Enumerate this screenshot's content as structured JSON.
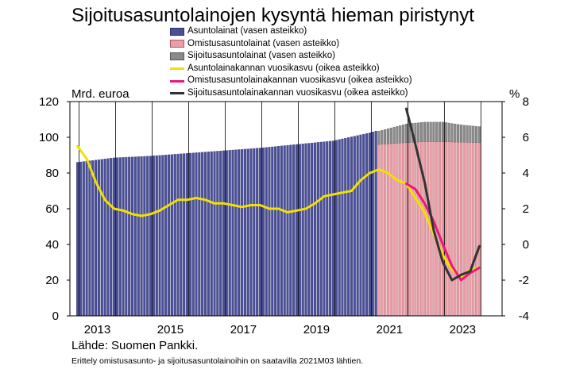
{
  "title": "Sijoitusasuntolainojen kysyntä hieman piristynyt",
  "legend": [
    {
      "label": "Asuntolainat (vasen asteikko)",
      "kind": "bar",
      "color": "#4a4f96",
      "border": "#2f3270"
    },
    {
      "label": "Omistusasuntolainat (vasen asteikko)",
      "kind": "bar",
      "color": "#e8a0a8",
      "border": "#b05560"
    },
    {
      "label": "Sijoitusasuntolainat (vasen asteikko)",
      "kind": "bar",
      "color": "#8a8a8a",
      "border": "#555555"
    },
    {
      "label": "Asuntolainakannan vuosikasvu (oikea asteikko)",
      "kind": "line",
      "color": "#f2e000"
    },
    {
      "label": "Omistusasuntolainakannan vuosikasvu (oikea asteikko)",
      "kind": "line",
      "color": "#e8197a"
    },
    {
      "label": "Sijoitusasuntolainakannan vuosikasvu (oikea asteikko)",
      "kind": "line",
      "color": "#333333"
    }
  ],
  "left_unit": "Mrd. euroa",
  "right_unit": "%",
  "source": "Lähde: Suomen Pankki.",
  "note": "Erittely omistusasunto- ja sijoitusasuntolainoihin on saatavilla 2021M03 lähtien.",
  "chart_data": {
    "type": "bar",
    "title": "Sijoitusasuntolainojen kysyntä hieman piristynyt",
    "x_ticks": [
      "2013",
      "2015",
      "2017",
      "2019",
      "2021",
      "2023"
    ],
    "y_left": {
      "label": "Mrd. euroa",
      "range": [
        0,
        120
      ],
      "ticks": [
        "0",
        "20",
        "40",
        "60",
        "80",
        "100",
        "120"
      ]
    },
    "y_right": {
      "label": "%",
      "range": [
        -4,
        8
      ],
      "ticks": [
        "-4",
        "-2",
        "0",
        "2",
        "4",
        "6",
        "8"
      ]
    },
    "grid": "vertical lines at year boundaries",
    "series": [
      {
        "name": "Asuntolainat (vasen asteikko)",
        "type": "bar",
        "axis": "left",
        "x": [
          "2012-12",
          "2013-12",
          "2014-12",
          "2015-12",
          "2016-12",
          "2017-12",
          "2018-12",
          "2019-12",
          "2020-12",
          "2021-02"
        ],
        "values": [
          86.0,
          88.5,
          89.5,
          91.0,
          92.5,
          94.0,
          96.0,
          98.0,
          102.5,
          103.5
        ]
      },
      {
        "name": "Omistusasuntolainat (vasen asteikko)",
        "type": "bar",
        "axis": "left",
        "x": [
          "2021-03",
          "2021-12",
          "2022-06",
          "2022-12",
          "2023-06",
          "2023-12"
        ],
        "values": [
          96.0,
          97.0,
          97.5,
          97.5,
          97.2,
          97.0
        ]
      },
      {
        "name": "Sijoitusasuntolainat (vasen asteikko)",
        "type": "bar",
        "axis": "left",
        "x": [
          "2021-03",
          "2021-12",
          "2022-06",
          "2022-12",
          "2023-06",
          "2023-12"
        ],
        "values": [
          7.5,
          10.5,
          11.0,
          11.0,
          9.8,
          9.0
        ]
      },
      {
        "name": "Asuntolainakannan vuosikasvu (oikea asteikko)",
        "type": "line",
        "axis": "right",
        "x": [
          "2012-12",
          "2013-03",
          "2013-06",
          "2013-09",
          "2013-12",
          "2014-03",
          "2014-06",
          "2014-09",
          "2014-12",
          "2015-03",
          "2015-06",
          "2015-09",
          "2015-12",
          "2016-03",
          "2016-06",
          "2016-09",
          "2016-12",
          "2017-03",
          "2017-06",
          "2017-09",
          "2017-12",
          "2018-03",
          "2018-06",
          "2018-09",
          "2018-12",
          "2019-03",
          "2019-06",
          "2019-09",
          "2019-12",
          "2020-03",
          "2020-06",
          "2020-09",
          "2020-12",
          "2021-03",
          "2021-06",
          "2021-09",
          "2021-12",
          "2022-03",
          "2022-06",
          "2022-09",
          "2022-12",
          "2023-03",
          "2023-06",
          "2023-09",
          "2023-12"
        ],
        "values": [
          5.5,
          4.8,
          3.5,
          2.5,
          2.0,
          1.9,
          1.7,
          1.6,
          1.7,
          1.9,
          2.2,
          2.5,
          2.5,
          2.6,
          2.5,
          2.3,
          2.3,
          2.2,
          2.1,
          2.2,
          2.2,
          2.0,
          2.0,
          1.8,
          1.9,
          2.0,
          2.3,
          2.7,
          2.8,
          2.9,
          3.0,
          3.6,
          4.0,
          4.2,
          4.0,
          3.6,
          3.4,
          2.6,
          1.8,
          0.6,
          -0.6,
          -1.4,
          -1.8,
          -1.4,
          -1.3
        ]
      },
      {
        "name": "Omistusasuntolainakannan vuosikasvu (oikea asteikko)",
        "type": "line",
        "axis": "right",
        "x": [
          "2021-12",
          "2022-03",
          "2022-06",
          "2022-09",
          "2022-12",
          "2023-03",
          "2023-06",
          "2023-09",
          "2023-12"
        ],
        "values": [
          3.4,
          3.1,
          2.3,
          1.3,
          0.0,
          -1.2,
          -2.0,
          -1.6,
          -1.3
        ]
      },
      {
        "name": "Sijoitusasuntolainakannan vuosikasvu (oikea asteikko)",
        "type": "line",
        "axis": "right",
        "x": [
          "2021-12",
          "2022-03",
          "2022-06",
          "2022-09",
          "2022-12",
          "2023-03",
          "2023-06",
          "2023-09",
          "2023-12"
        ],
        "values": [
          7.6,
          5.6,
          3.5,
          0.8,
          -1.0,
          -2.0,
          -1.7,
          -1.5,
          -0.1
        ]
      }
    ]
  }
}
